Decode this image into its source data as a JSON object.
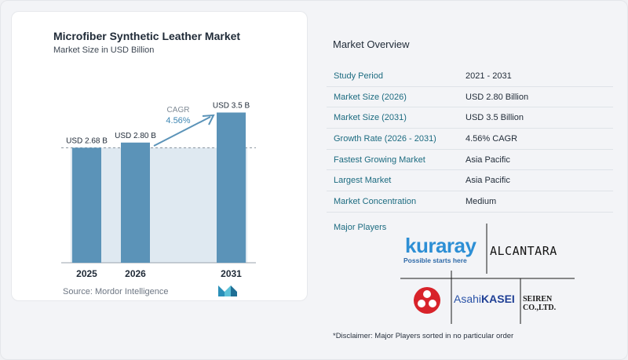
{
  "chart": {
    "title": "Microfiber Synthetic Leather Market",
    "subtitle": "Market Size in USD Billion",
    "cagr_label": "CAGR",
    "cagr_value": "4.56%",
    "source": "Source: Mordor Intelligence"
  },
  "chart_data": {
    "type": "bar",
    "categories": [
      "2025",
      "2026",
      "2031"
    ],
    "values": [
      2.68,
      2.8,
      3.5
    ],
    "data_labels": [
      "USD 2.68 B",
      "USD 2.80 B",
      "USD 3.5 B"
    ],
    "title": "Microfiber Synthetic Leather Market",
    "subtitle": "Market Size in USD Billion",
    "ylim": [
      0,
      3.6
    ],
    "grid": false,
    "reference_line_value": 2.68,
    "colors": {
      "bar": "#5b93b8",
      "band": "#dfe9f1",
      "arrow": "#5b93b8"
    }
  },
  "overview": {
    "title": "Market Overview",
    "rows": [
      {
        "key": "Study Period",
        "value": "2021 - 2031"
      },
      {
        "key": "Market Size (2026)",
        "value": "USD 2.80 Billion"
      },
      {
        "key": "Market Size (2031)",
        "value": "USD 3.5 Billion"
      },
      {
        "key": "Growth Rate (2026 - 2031)",
        "value": "4.56% CAGR"
      },
      {
        "key": "Fastest Growing Market",
        "value": "Asia Pacific"
      },
      {
        "key": "Largest Market",
        "value": "Asia Pacific"
      },
      {
        "key": "Market Concentration",
        "value": "Medium"
      }
    ]
  },
  "players": {
    "label": "Major Players",
    "kuraray": "kuraray",
    "kuraray_tagline": "Possible starts here",
    "alcantara": "ALCANTARA",
    "asahi_prefix": "Asahi",
    "asahi_suffix": "KASEI",
    "seiren": "SEIREN CO.,LTD."
  },
  "disclaimer": "*Disclaimer: Major Players sorted in no particular order",
  "colors": {
    "accent": "#1c6b80",
    "bar": "#5b93b8",
    "kuraray_blue": "#2d8fd5",
    "toray_red": "#d8232a"
  },
  "icons": [
    "mordor-intelligence-logo-icon",
    "toray-logo-icon"
  ]
}
